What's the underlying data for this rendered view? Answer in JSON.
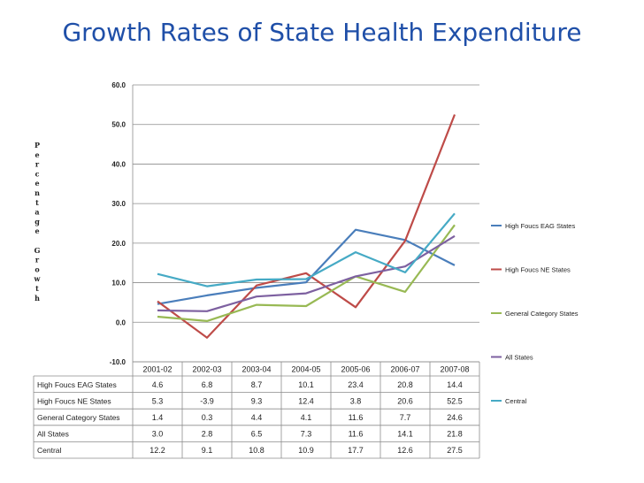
{
  "title": "Growth Rates of State Health Expenditure",
  "chart_data": {
    "type": "line",
    "title": "Growth Rates of State Health Expenditure",
    "xlabel": "",
    "ylabel": "Percentage Growth",
    "ylim": [
      -10,
      60
    ],
    "yticks": [
      "60.0",
      "50.0",
      "40.0",
      "30.0",
      "20.0",
      "10.0",
      "0.0",
      "-10.0"
    ],
    "grid": true,
    "legend": "right",
    "categories": [
      "2001-02",
      "2002-03",
      "2003-04",
      "2004-05",
      "2005-06",
      "2006-07",
      "2007-08"
    ],
    "series": [
      {
        "name": "High Foucs EAG States",
        "color": "#4a7ebb",
        "values": [
          4.6,
          6.8,
          8.7,
          10.1,
          23.4,
          20.8,
          14.4
        ],
        "labels": [
          "4.6",
          "6.8",
          "8.7",
          "10.1",
          "23.4",
          "20.8",
          "14.4"
        ]
      },
      {
        "name": "High Foucs NE States",
        "color": "#be4b48",
        "values": [
          5.3,
          -3.9,
          9.3,
          12.4,
          3.8,
          20.6,
          52.5
        ],
        "labels": [
          "5.3",
          "-3.9",
          "9.3",
          "12.4",
          "3.8",
          "20.6",
          "52.5"
        ]
      },
      {
        "name": "General Category States",
        "color": "#98b954",
        "values": [
          1.4,
          0.3,
          4.4,
          4.1,
          11.6,
          7.7,
          24.6
        ],
        "labels": [
          "1.4",
          "0.3",
          "4.4",
          "4.1",
          "11.6",
          "7.7",
          "24.6"
        ]
      },
      {
        "name": "All States",
        "color": "#7d60a0",
        "values": [
          3.0,
          2.8,
          6.5,
          7.3,
          11.6,
          14.1,
          21.8
        ],
        "labels": [
          "3.0",
          "2.8",
          "6.5",
          "7.3",
          "11.6",
          "14.1",
          "21.8"
        ]
      },
      {
        "name": "Central",
        "color": "#46aac5",
        "values": [
          12.2,
          9.1,
          10.8,
          10.9,
          17.7,
          12.6,
          27.5
        ],
        "labels": [
          "12.2",
          "9.1",
          "10.8",
          "10.9",
          "17.7",
          "12.6",
          "27.5"
        ]
      }
    ]
  }
}
